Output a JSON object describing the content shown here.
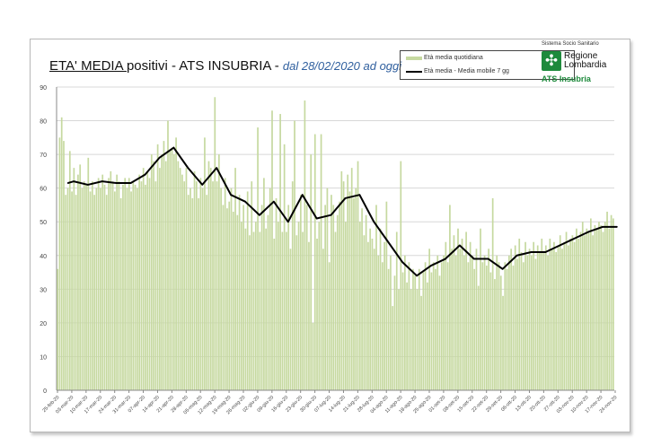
{
  "chart_data": {
    "type": "bar",
    "title_part1": "ETA' MEDIA ",
    "title_part2": "positivi - ATS INSUBRIA - ",
    "subtitle": "dal 28/02/2020 ad oggi",
    "legend": [
      "Età media quotidiana",
      "Età media - Media mobile 7 gg"
    ],
    "ylim": [
      0,
      90
    ],
    "yticks": [
      0,
      10,
      20,
      30,
      40,
      50,
      60,
      70,
      80,
      90
    ],
    "xtick_labels": [
      "25-feb-20",
      "03-mar-20",
      "10-mar-20",
      "17-mar-20",
      "24-mar-20",
      "31-mar-20",
      "07-apr-20",
      "14-apr-20",
      "21-apr-20",
      "28-apr-20",
      "05-mag-20",
      "12-mag-20",
      "19-mag-20",
      "26-mag-20",
      "02-giu-20",
      "09-giu-20",
      "16-giu-20",
      "23-giu-20",
      "30-giu-20",
      "07-lug-20",
      "14-lug-20",
      "21-lug-20",
      "28-lug-20",
      "04-ago-20",
      "11-ago-20",
      "18-ago-20",
      "25-ago-20",
      "01-set-20",
      "08-set-20",
      "15-set-20",
      "22-set-20",
      "29-set-20",
      "06-ott-20",
      "13-ott-20",
      "20-ott-20",
      "27-ott-20",
      "03-nov-20",
      "10-nov-20",
      "17-nov-20",
      "24-nov-20"
    ],
    "grid": true,
    "legend_position": "top-right",
    "series": [
      {
        "name": "Età media quotidiana",
        "type": "bar",
        "color": "#c6d9a0",
        "values": [
          36,
          75,
          81,
          74,
          58,
          60,
          71,
          59,
          66,
          58,
          64,
          67,
          60,
          62,
          61,
          69,
          59,
          62,
          58,
          60,
          63,
          60,
          64,
          61,
          58,
          63,
          65,
          62,
          59,
          64,
          62,
          57,
          61,
          63,
          60,
          63,
          59,
          62,
          61,
          60,
          64,
          62,
          66,
          61,
          65,
          63,
          70,
          68,
          62,
          73,
          66,
          70,
          74,
          68,
          80,
          71,
          72,
          70,
          75,
          68,
          66,
          64,
          62,
          66,
          58,
          60,
          57,
          65,
          62,
          57,
          63,
          60,
          75,
          58,
          68,
          66,
          62,
          87,
          62,
          70,
          60,
          55,
          63,
          54,
          56,
          60,
          53,
          66,
          52,
          58,
          50,
          55,
          48,
          59,
          46,
          62,
          47,
          50,
          78,
          47,
          55,
          63,
          48,
          52,
          60,
          83,
          45,
          57,
          50,
          82,
          47,
          73,
          47,
          55,
          42,
          62,
          80,
          46,
          50,
          58,
          47,
          86,
          55,
          44,
          70,
          20,
          76,
          45,
          50,
          76,
          42,
          55,
          60,
          38,
          58,
          55,
          47,
          52,
          56,
          65,
          62,
          50,
          64,
          59,
          66,
          57,
          60,
          68,
          50,
          54,
          46,
          52,
          44,
          48,
          45,
          42,
          55,
          40,
          48,
          38,
          44,
          56,
          36,
          40,
          25,
          34,
          47,
          30,
          68,
          35,
          40,
          32,
          38,
          30,
          36,
          34,
          30,
          36,
          28,
          35,
          38,
          32,
          42,
          35,
          38,
          36,
          40,
          34,
          38,
          40,
          44,
          38,
          55,
          42,
          46,
          40,
          48,
          42,
          45,
          40,
          47,
          38,
          44,
          40,
          36,
          42,
          31,
          48,
          38,
          40,
          37,
          42,
          35,
          57,
          33,
          40,
          38,
          34,
          28,
          38,
          36,
          40,
          42,
          37,
          43,
          39,
          45,
          41,
          38,
          44,
          40,
          42,
          40,
          44,
          39,
          43,
          41,
          45,
          41,
          43,
          40,
          45,
          42,
          44,
          41,
          43,
          46,
          42,
          44,
          47,
          43,
          45,
          46,
          44,
          48,
          45,
          47,
          50,
          46,
          48,
          47,
          51,
          46,
          49,
          48,
          50,
          49,
          47,
          50,
          53,
          48,
          52,
          51
        ]
      },
      {
        "name": "Età media - Media mobile 7 gg",
        "type": "line",
        "color": "#000000",
        "x_week_index": [
          0.6,
          1,
          2,
          3,
          4,
          5,
          6,
          7,
          8,
          9,
          10,
          11,
          12,
          13,
          14,
          15,
          16,
          17,
          18,
          19,
          20,
          21,
          22,
          23,
          24,
          25,
          26,
          27,
          28,
          29,
          30,
          31,
          32,
          33,
          34,
          35,
          36,
          37,
          38,
          39
        ],
        "values": [
          61.5,
          62,
          61,
          62,
          61.5,
          61.5,
          64,
          69,
          72,
          66,
          61,
          66,
          58,
          56,
          52,
          56,
          50,
          58,
          51,
          52,
          57,
          58,
          50,
          44,
          38,
          34,
          37,
          39,
          43,
          39,
          39,
          36,
          40,
          41,
          41,
          43,
          45,
          47,
          48.5,
          48.5
        ]
      }
    ]
  },
  "logo": {
    "top": "Sistema Socio Sanitario",
    "name1": "Regione",
    "name2": "Lombardia",
    "unit": "ATS Insubria"
  }
}
